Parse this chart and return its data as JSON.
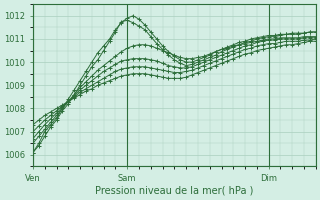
{
  "title": "",
  "xlabel": "Pression niveau de la mer( hPa )",
  "ylim": [
    1005.5,
    1012.5
  ],
  "xlim": [
    0,
    48
  ],
  "yticks": [
    1006,
    1007,
    1008,
    1009,
    1010,
    1011,
    1012
  ],
  "xtick_positions": [
    0,
    16,
    40
  ],
  "xtick_labels": [
    "Ven",
    "Sam",
    "Dim"
  ],
  "vlines": [
    0,
    16,
    40
  ],
  "bg_color": "#d4eee4",
  "grid_color": "#aacfbe",
  "line_color": "#2d6e3a",
  "marker": "+",
  "series": [
    [
      1006.1,
      1006.4,
      1006.8,
      1007.2,
      1007.5,
      1007.9,
      1008.2,
      1008.6,
      1009.0,
      1009.4,
      1009.8,
      1010.1,
      1010.5,
      1010.9,
      1011.3,
      1011.75,
      1011.8,
      1011.7,
      1011.55,
      1011.4,
      1011.1,
      1010.8,
      1010.55,
      1010.3,
      1010.1,
      1009.95,
      1009.85,
      1009.9,
      1010.0,
      1010.1,
      1010.2,
      1010.3,
      1010.45,
      1010.55,
      1010.65,
      1010.75,
      1010.85,
      1010.9,
      1011.0,
      1011.05,
      1011.1,
      1011.1,
      1011.15,
      1011.2,
      1011.2,
      1011.2,
      1011.25,
      1011.3,
      1011.3
    ],
    [
      1006.5,
      1006.8,
      1007.1,
      1007.4,
      1007.7,
      1008.0,
      1008.3,
      1008.6,
      1008.9,
      1009.15,
      1009.4,
      1009.65,
      1009.85,
      1010.05,
      1010.25,
      1010.45,
      1010.6,
      1010.7,
      1010.75,
      1010.75,
      1010.7,
      1010.6,
      1010.5,
      1010.4,
      1010.3,
      1010.2,
      1010.15,
      1010.15,
      1010.2,
      1010.25,
      1010.35,
      1010.45,
      1010.55,
      1010.6,
      1010.7,
      1010.75,
      1010.8,
      1010.85,
      1010.9,
      1010.95,
      1011.0,
      1011.0,
      1011.05,
      1011.05,
      1011.05,
      1011.05,
      1011.1,
      1011.1,
      1011.1
    ],
    [
      1006.7,
      1007.0,
      1007.3,
      1007.55,
      1007.8,
      1008.05,
      1008.3,
      1008.55,
      1008.8,
      1009.0,
      1009.2,
      1009.4,
      1009.6,
      1009.75,
      1009.9,
      1010.05,
      1010.1,
      1010.15,
      1010.15,
      1010.15,
      1010.1,
      1010.05,
      1009.95,
      1009.85,
      1009.8,
      1009.75,
      1009.75,
      1009.8,
      1009.9,
      1010.0,
      1010.1,
      1010.2,
      1010.3,
      1010.4,
      1010.5,
      1010.6,
      1010.7,
      1010.75,
      1010.85,
      1010.9,
      1010.95,
      1010.95,
      1011.0,
      1011.0,
      1011.0,
      1011.0,
      1011.05,
      1011.05,
      1011.05
    ],
    [
      1007.0,
      1007.25,
      1007.5,
      1007.7,
      1007.9,
      1008.1,
      1008.3,
      1008.5,
      1008.7,
      1008.85,
      1009.0,
      1009.15,
      1009.3,
      1009.45,
      1009.6,
      1009.7,
      1009.75,
      1009.8,
      1009.8,
      1009.8,
      1009.75,
      1009.7,
      1009.65,
      1009.6,
      1009.55,
      1009.55,
      1009.6,
      1009.65,
      1009.75,
      1009.85,
      1009.95,
      1010.05,
      1010.15,
      1010.25,
      1010.35,
      1010.45,
      1010.55,
      1010.6,
      1010.7,
      1010.75,
      1010.8,
      1010.8,
      1010.85,
      1010.9,
      1010.9,
      1010.9,
      1010.95,
      1010.95,
      1011.0
    ],
    [
      1007.3,
      1007.5,
      1007.7,
      1007.85,
      1008.0,
      1008.15,
      1008.3,
      1008.45,
      1008.6,
      1008.75,
      1008.85,
      1009.0,
      1009.1,
      1009.2,
      1009.3,
      1009.4,
      1009.45,
      1009.5,
      1009.5,
      1009.5,
      1009.45,
      1009.4,
      1009.35,
      1009.3,
      1009.3,
      1009.3,
      1009.35,
      1009.45,
      1009.55,
      1009.65,
      1009.75,
      1009.85,
      1009.95,
      1010.05,
      1010.15,
      1010.25,
      1010.35,
      1010.4,
      1010.5,
      1010.55,
      1010.6,
      1010.65,
      1010.7,
      1010.75,
      1010.75,
      1010.8,
      1010.85,
      1010.9,
      1010.9
    ],
    [
      1006.1,
      1006.5,
      1007.0,
      1007.3,
      1007.6,
      1008.0,
      1008.4,
      1008.8,
      1009.2,
      1009.6,
      1010.0,
      1010.4,
      1010.7,
      1011.0,
      1011.4,
      1011.7,
      1011.9,
      1012.0,
      1011.85,
      1011.6,
      1011.3,
      1011.0,
      1010.7,
      1010.45,
      1010.25,
      1010.1,
      1010.0,
      1010.0,
      1010.1,
      1010.2,
      1010.3,
      1010.45,
      1010.55,
      1010.65,
      1010.75,
      1010.85,
      1010.9,
      1011.0,
      1011.05,
      1011.1,
      1011.15,
      1011.15,
      1011.2,
      1011.2,
      1011.25,
      1011.25,
      1011.25,
      1011.3,
      1011.3
    ]
  ]
}
